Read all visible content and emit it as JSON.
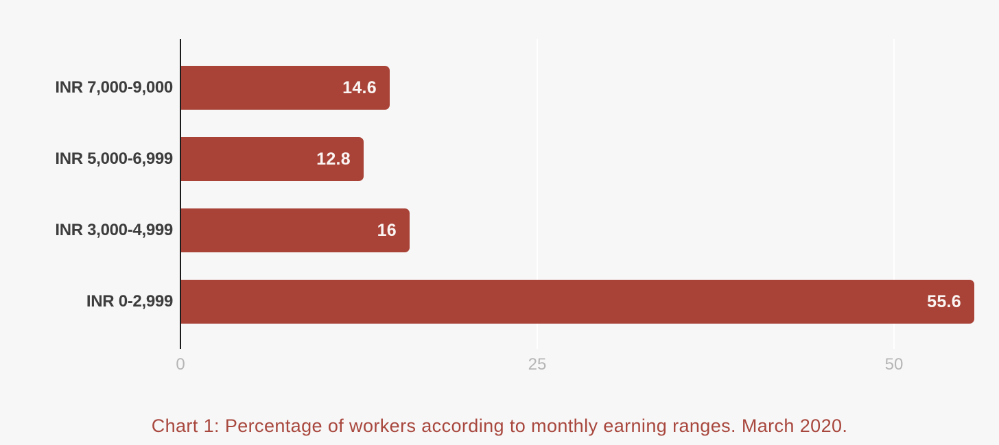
{
  "page": {
    "background": "#f7f7f7"
  },
  "chart_data": {
    "type": "bar",
    "orientation": "horizontal",
    "categories": [
      "INR 7,000-9,000",
      "INR 5,000-6,999",
      "INR 3,000-4,999",
      "INR 0-2,999"
    ],
    "values": [
      14.6,
      12.8,
      16,
      55.6
    ],
    "value_labels": [
      "14.6",
      "12.8",
      "16",
      "55.6"
    ],
    "x_ticks": [
      0,
      25,
      50
    ],
    "x_tick_labels": [
      "0",
      "25",
      "50"
    ],
    "xlim": [
      0,
      57.5
    ],
    "grid": true,
    "legend": false,
    "bar_color": "#a94338",
    "axis_color": "#1c1c1c",
    "gridline_color": "#ffffff",
    "tick_label_color": "#b5b5b5",
    "category_label_color": "#3d3d3d",
    "value_label_color": "#faf5f3",
    "caption": "Chart 1: Percentage of workers according to monthly earning ranges. March 2020.",
    "caption_color": "#a8473d"
  }
}
